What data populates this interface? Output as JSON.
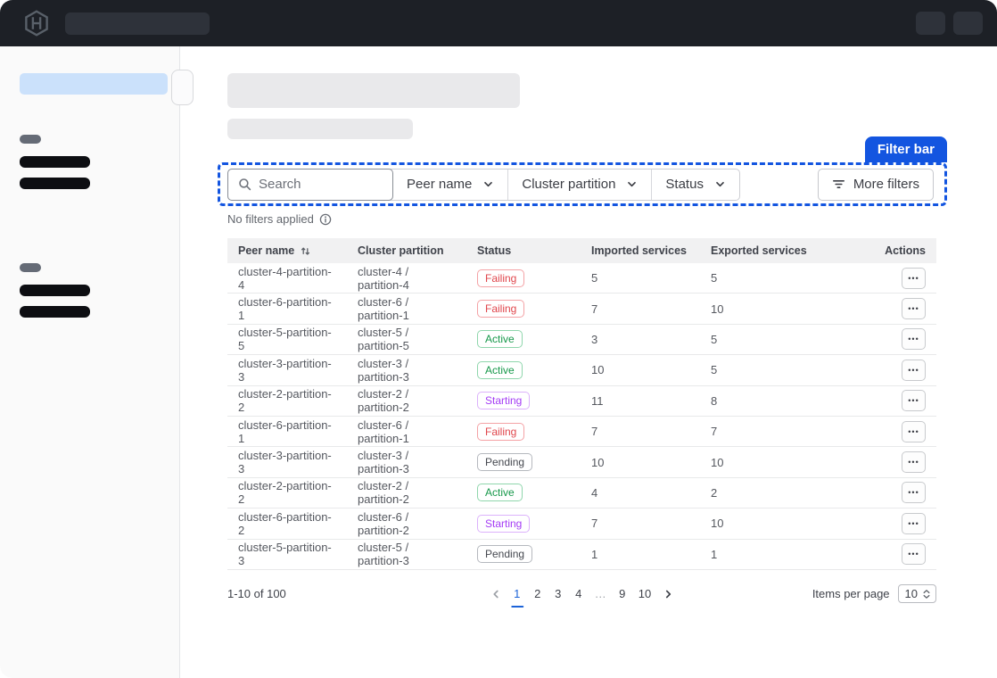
{
  "colors": {
    "accent": "#1355e0",
    "link": "#1c63d8",
    "status": {
      "Failing": {
        "text": "#e0464c",
        "border": "#f4a2a5"
      },
      "Active": {
        "text": "#16984a",
        "border": "#8fd6ac"
      },
      "Starting": {
        "text": "#a43bf5",
        "border": "#dcb2fb"
      },
      "Pending": {
        "text": "#45484f",
        "border": "#b5b8be"
      }
    }
  },
  "annotation": {
    "label": "Filter bar"
  },
  "filter_bar": {
    "search": {
      "placeholder": "Search"
    },
    "dropdowns": [
      {
        "label": "Peer name"
      },
      {
        "label": "Cluster partition"
      },
      {
        "label": "Status"
      }
    ],
    "more_filters_label": "More filters",
    "no_filters_text": "No filters applied"
  },
  "table": {
    "columns": [
      {
        "label": "Peer name"
      },
      {
        "label": "Cluster partition"
      },
      {
        "label": "Status"
      },
      {
        "label": "Imported services"
      },
      {
        "label": "Exported services"
      },
      {
        "label": "Actions"
      }
    ],
    "rows": [
      {
        "peer_name": "cluster-4-partition-4",
        "cluster_partition": "cluster-4 / partition-4",
        "status": "Failing",
        "imported": "5",
        "exported": "5"
      },
      {
        "peer_name": "cluster-6-partition-1",
        "cluster_partition": "cluster-6 / partition-1",
        "status": "Failing",
        "imported": "7",
        "exported": "10"
      },
      {
        "peer_name": "cluster-5-partition-5",
        "cluster_partition": "cluster-5 / partition-5",
        "status": "Active",
        "imported": "3",
        "exported": "5"
      },
      {
        "peer_name": "cluster-3-partition-3",
        "cluster_partition": "cluster-3 / partition-3",
        "status": "Active",
        "imported": "10",
        "exported": "5"
      },
      {
        "peer_name": "cluster-2-partition-2",
        "cluster_partition": "cluster-2 / partition-2",
        "status": "Starting",
        "imported": "11",
        "exported": "8"
      },
      {
        "peer_name": "cluster-6-partition-1",
        "cluster_partition": "cluster-6 / partition-1",
        "status": "Failing",
        "imported": "7",
        "exported": "7"
      },
      {
        "peer_name": "cluster-3-partition-3",
        "cluster_partition": "cluster-3 / partition-3",
        "status": "Pending",
        "imported": "10",
        "exported": "10"
      },
      {
        "peer_name": "cluster-2-partition-2",
        "cluster_partition": "cluster-2 / partition-2",
        "status": "Active",
        "imported": "4",
        "exported": "2"
      },
      {
        "peer_name": "cluster-6-partition-2",
        "cluster_partition": "cluster-6 / partition-2",
        "status": "Starting",
        "imported": "7",
        "exported": "10"
      },
      {
        "peer_name": "cluster-5-partition-3",
        "cluster_partition": "cluster-5 / partition-3",
        "status": "Pending",
        "imported": "1",
        "exported": "1"
      }
    ]
  },
  "pagination": {
    "range_text": "1-10 of 100",
    "pages": [
      "1",
      "2",
      "3",
      "4",
      "…",
      "9",
      "10"
    ],
    "current_page": "1",
    "items_per_page_label": "Items per page",
    "items_per_page_value": "10"
  },
  "icons": {
    "logo": "hashicorp-hexagon-h",
    "search": "magnifier",
    "dropdown_caret": "chevron-down",
    "more_filters": "filter-lines",
    "info": "circled-i",
    "sort": "arrows-up-down",
    "actions_ellipsis": "•••",
    "prev": "chevron-left",
    "next": "chevron-right",
    "select_caret": "chevrons-up-down"
  }
}
